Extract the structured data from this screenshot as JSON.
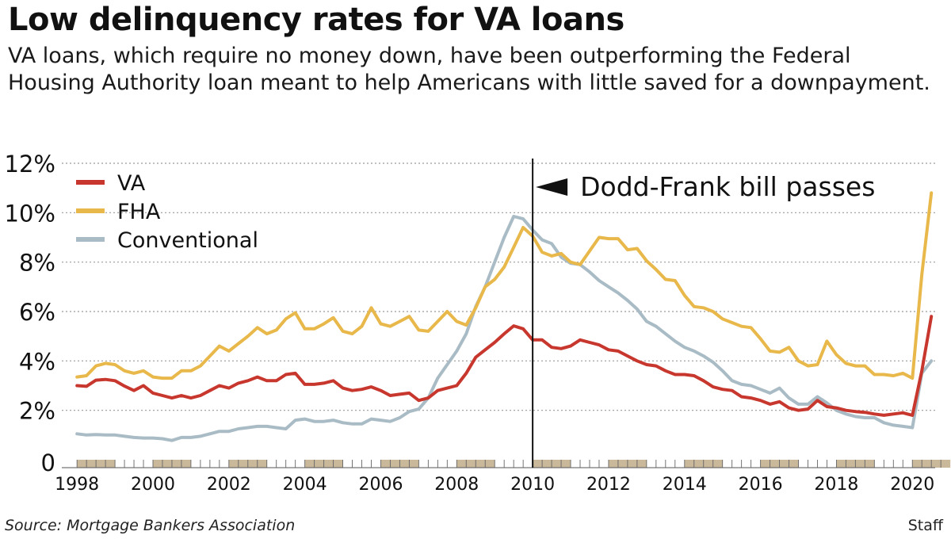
{
  "header": {
    "title": "Low delinquency rates for VA loans",
    "subtitle": "VA loans, which require no money down, have been outperforming the Federal Housing Authority loan meant to help Americans with little saved for a downpayment."
  },
  "footer": {
    "source": "Source: Mortgage Bankers Association",
    "credit": "Staff"
  },
  "chart_data": {
    "type": "line",
    "title": "",
    "xlabel": "",
    "ylabel": "",
    "xlim": [
      1997.6,
      2020.6
    ],
    "ylim": [
      0,
      12
    ],
    "grid": true,
    "grid_style": "dotted horizontal",
    "legend_placement": "top-left",
    "y_ticks": [
      {
        "value": 0,
        "label": "0"
      },
      {
        "value": 2,
        "label": "2%"
      },
      {
        "value": 4,
        "label": "4%"
      },
      {
        "value": 6,
        "label": "6%"
      },
      {
        "value": 8,
        "label": "8%"
      },
      {
        "value": 10,
        "label": "10%"
      },
      {
        "value": 12,
        "label": "12%"
      }
    ],
    "x_ticks": [
      {
        "value": 1998,
        "label": "1998"
      },
      {
        "value": 2000,
        "label": "2000"
      },
      {
        "value": 2002,
        "label": "2002"
      },
      {
        "value": 2004,
        "label": "2004"
      },
      {
        "value": 2006,
        "label": "2006"
      },
      {
        "value": 2008,
        "label": "2008"
      },
      {
        "value": 2010,
        "label": "2010"
      },
      {
        "value": 2012,
        "label": "2012"
      },
      {
        "value": 2014,
        "label": "2014"
      },
      {
        "value": 2016,
        "label": "2016"
      },
      {
        "value": 2018,
        "label": "2018"
      },
      {
        "value": 2020,
        "label": "2020"
      }
    ],
    "annotation": {
      "x": 2010.0,
      "label": "Dodd-Frank bill passes"
    },
    "colors": {
      "VA": "#c8372d",
      "FHA": "#e8b84a",
      "Conventional": "#a9bcc6",
      "axis_band": "#c9b89a",
      "grid": "#9a9a9a"
    },
    "series": [
      {
        "name": "VA",
        "points": [
          [
            1998.0,
            3.0
          ],
          [
            1998.25,
            2.97
          ],
          [
            1998.5,
            3.22
          ],
          [
            1998.75,
            3.25
          ],
          [
            1999.0,
            3.2
          ],
          [
            1999.25,
            2.98
          ],
          [
            1999.5,
            2.8
          ],
          [
            1999.75,
            3.0
          ],
          [
            2000.0,
            2.7
          ],
          [
            2000.25,
            2.6
          ],
          [
            2000.5,
            2.5
          ],
          [
            2000.75,
            2.6
          ],
          [
            2001.0,
            2.5
          ],
          [
            2001.25,
            2.6
          ],
          [
            2001.5,
            2.8
          ],
          [
            2001.75,
            3.0
          ],
          [
            2002.0,
            2.9
          ],
          [
            2002.25,
            3.1
          ],
          [
            2002.5,
            3.2
          ],
          [
            2002.75,
            3.35
          ],
          [
            2003.0,
            3.2
          ],
          [
            2003.25,
            3.2
          ],
          [
            2003.5,
            3.45
          ],
          [
            2003.75,
            3.5
          ],
          [
            2004.0,
            3.05
          ],
          [
            2004.25,
            3.05
          ],
          [
            2004.5,
            3.1
          ],
          [
            2004.75,
            3.2
          ],
          [
            2005.0,
            2.9
          ],
          [
            2005.25,
            2.8
          ],
          [
            2005.5,
            2.85
          ],
          [
            2005.75,
            2.95
          ],
          [
            2006.0,
            2.8
          ],
          [
            2006.25,
            2.6
          ],
          [
            2006.5,
            2.65
          ],
          [
            2006.75,
            2.7
          ],
          [
            2007.0,
            2.4
          ],
          [
            2007.25,
            2.5
          ],
          [
            2007.5,
            2.8
          ],
          [
            2007.75,
            2.9
          ],
          [
            2008.0,
            3.0
          ],
          [
            2008.25,
            3.5
          ],
          [
            2008.5,
            4.15
          ],
          [
            2008.75,
            4.45
          ],
          [
            2009.0,
            4.75
          ],
          [
            2009.25,
            5.1
          ],
          [
            2009.5,
            5.42
          ],
          [
            2009.75,
            5.3
          ],
          [
            2010.0,
            4.85
          ],
          [
            2010.25,
            4.85
          ],
          [
            2010.5,
            4.55
          ],
          [
            2010.75,
            4.5
          ],
          [
            2011.0,
            4.6
          ],
          [
            2011.25,
            4.85
          ],
          [
            2011.5,
            4.75
          ],
          [
            2011.75,
            4.65
          ],
          [
            2012.0,
            4.45
          ],
          [
            2012.25,
            4.4
          ],
          [
            2012.5,
            4.2
          ],
          [
            2012.75,
            4.0
          ],
          [
            2013.0,
            3.85
          ],
          [
            2013.25,
            3.8
          ],
          [
            2013.5,
            3.6
          ],
          [
            2013.75,
            3.45
          ],
          [
            2014.0,
            3.45
          ],
          [
            2014.25,
            3.4
          ],
          [
            2014.5,
            3.2
          ],
          [
            2014.75,
            2.95
          ],
          [
            2015.0,
            2.85
          ],
          [
            2015.25,
            2.8
          ],
          [
            2015.5,
            2.55
          ],
          [
            2015.75,
            2.5
          ],
          [
            2016.0,
            2.4
          ],
          [
            2016.25,
            2.25
          ],
          [
            2016.5,
            2.35
          ],
          [
            2016.75,
            2.1
          ],
          [
            2017.0,
            2.0
          ],
          [
            2017.25,
            2.05
          ],
          [
            2017.5,
            2.4
          ],
          [
            2017.75,
            2.15
          ],
          [
            2018.0,
            2.1
          ],
          [
            2018.25,
            2.0
          ],
          [
            2018.5,
            1.95
          ],
          [
            2018.75,
            1.92
          ],
          [
            2019.0,
            1.85
          ],
          [
            2019.25,
            1.8
          ],
          [
            2019.5,
            1.85
          ],
          [
            2019.75,
            1.9
          ],
          [
            2020.0,
            1.8
          ],
          [
            2020.25,
            3.6
          ],
          [
            2020.5,
            5.8
          ]
        ]
      },
      {
        "name": "FHA",
        "points": [
          [
            1998.0,
            3.35
          ],
          [
            1998.25,
            3.4
          ],
          [
            1998.5,
            3.8
          ],
          [
            1998.75,
            3.9
          ],
          [
            1999.0,
            3.85
          ],
          [
            1999.25,
            3.6
          ],
          [
            1999.5,
            3.5
          ],
          [
            1999.75,
            3.6
          ],
          [
            2000.0,
            3.35
          ],
          [
            2000.25,
            3.3
          ],
          [
            2000.5,
            3.3
          ],
          [
            2000.75,
            3.6
          ],
          [
            2001.0,
            3.6
          ],
          [
            2001.25,
            3.8
          ],
          [
            2001.5,
            4.2
          ],
          [
            2001.75,
            4.6
          ],
          [
            2002.0,
            4.4
          ],
          [
            2002.25,
            4.7
          ],
          [
            2002.5,
            5.0
          ],
          [
            2002.75,
            5.35
          ],
          [
            2003.0,
            5.1
          ],
          [
            2003.25,
            5.25
          ],
          [
            2003.5,
            5.7
          ],
          [
            2003.75,
            5.95
          ],
          [
            2004.0,
            5.3
          ],
          [
            2004.25,
            5.3
          ],
          [
            2004.5,
            5.5
          ],
          [
            2004.75,
            5.75
          ],
          [
            2005.0,
            5.2
          ],
          [
            2005.25,
            5.1
          ],
          [
            2005.5,
            5.4
          ],
          [
            2005.75,
            6.15
          ],
          [
            2006.0,
            5.5
          ],
          [
            2006.25,
            5.4
          ],
          [
            2006.5,
            5.6
          ],
          [
            2006.75,
            5.8
          ],
          [
            2007.0,
            5.25
          ],
          [
            2007.25,
            5.2
          ],
          [
            2007.5,
            5.6
          ],
          [
            2007.75,
            6.0
          ],
          [
            2008.0,
            5.6
          ],
          [
            2008.25,
            5.45
          ],
          [
            2008.5,
            6.15
          ],
          [
            2008.75,
            7.0
          ],
          [
            2009.0,
            7.3
          ],
          [
            2009.25,
            7.8
          ],
          [
            2009.5,
            8.6
          ],
          [
            2009.75,
            9.4
          ],
          [
            2010.0,
            9.05
          ],
          [
            2010.25,
            8.4
          ],
          [
            2010.5,
            8.25
          ],
          [
            2010.75,
            8.35
          ],
          [
            2011.0,
            8.0
          ],
          [
            2011.25,
            7.9
          ],
          [
            2011.5,
            8.45
          ],
          [
            2011.75,
            9.0
          ],
          [
            2012.0,
            8.95
          ],
          [
            2012.25,
            8.95
          ],
          [
            2012.5,
            8.5
          ],
          [
            2012.75,
            8.55
          ],
          [
            2013.0,
            8.05
          ],
          [
            2013.25,
            7.7
          ],
          [
            2013.5,
            7.3
          ],
          [
            2013.75,
            7.25
          ],
          [
            2014.0,
            6.65
          ],
          [
            2014.25,
            6.2
          ],
          [
            2014.5,
            6.15
          ],
          [
            2014.75,
            6.0
          ],
          [
            2015.0,
            5.7
          ],
          [
            2015.25,
            5.55
          ],
          [
            2015.5,
            5.4
          ],
          [
            2015.75,
            5.35
          ],
          [
            2016.0,
            4.9
          ],
          [
            2016.25,
            4.4
          ],
          [
            2016.5,
            4.35
          ],
          [
            2016.75,
            4.55
          ],
          [
            2017.0,
            4.0
          ],
          [
            2017.25,
            3.8
          ],
          [
            2017.5,
            3.85
          ],
          [
            2017.75,
            4.8
          ],
          [
            2018.0,
            4.25
          ],
          [
            2018.25,
            3.9
          ],
          [
            2018.5,
            3.8
          ],
          [
            2018.75,
            3.8
          ],
          [
            2019.0,
            3.45
          ],
          [
            2019.25,
            3.45
          ],
          [
            2019.5,
            3.4
          ],
          [
            2019.75,
            3.5
          ],
          [
            2020.0,
            3.3
          ],
          [
            2020.25,
            7.5
          ],
          [
            2020.5,
            10.8
          ]
        ]
      },
      {
        "name": "Conventional",
        "points": [
          [
            1998.0,
            1.05
          ],
          [
            1998.25,
            1.0
          ],
          [
            1998.5,
            1.02
          ],
          [
            1998.75,
            1.0
          ],
          [
            1999.0,
            1.0
          ],
          [
            1999.25,
            0.95
          ],
          [
            1999.5,
            0.9
          ],
          [
            1999.75,
            0.88
          ],
          [
            2000.0,
            0.88
          ],
          [
            2000.25,
            0.85
          ],
          [
            2000.5,
            0.78
          ],
          [
            2000.75,
            0.9
          ],
          [
            2001.0,
            0.9
          ],
          [
            2001.25,
            0.95
          ],
          [
            2001.5,
            1.05
          ],
          [
            2001.75,
            1.15
          ],
          [
            2002.0,
            1.15
          ],
          [
            2002.25,
            1.25
          ],
          [
            2002.5,
            1.3
          ],
          [
            2002.75,
            1.35
          ],
          [
            2003.0,
            1.35
          ],
          [
            2003.25,
            1.3
          ],
          [
            2003.5,
            1.25
          ],
          [
            2003.75,
            1.6
          ],
          [
            2004.0,
            1.65
          ],
          [
            2004.25,
            1.55
          ],
          [
            2004.5,
            1.55
          ],
          [
            2004.75,
            1.6
          ],
          [
            2005.0,
            1.5
          ],
          [
            2005.25,
            1.45
          ],
          [
            2005.5,
            1.45
          ],
          [
            2005.75,
            1.65
          ],
          [
            2006.0,
            1.6
          ],
          [
            2006.25,
            1.55
          ],
          [
            2006.5,
            1.7
          ],
          [
            2006.75,
            1.95
          ],
          [
            2007.0,
            2.05
          ],
          [
            2007.25,
            2.5
          ],
          [
            2007.5,
            3.3
          ],
          [
            2007.75,
            3.85
          ],
          [
            2008.0,
            4.4
          ],
          [
            2008.25,
            5.1
          ],
          [
            2008.5,
            6.2
          ],
          [
            2008.75,
            7.0
          ],
          [
            2009.0,
            8.0
          ],
          [
            2009.25,
            9.0
          ],
          [
            2009.5,
            9.85
          ],
          [
            2009.75,
            9.75
          ],
          [
            2010.0,
            9.3
          ],
          [
            2010.25,
            8.9
          ],
          [
            2010.5,
            8.75
          ],
          [
            2010.75,
            8.2
          ],
          [
            2011.0,
            7.95
          ],
          [
            2011.25,
            7.9
          ],
          [
            2011.5,
            7.6
          ],
          [
            2011.75,
            7.25
          ],
          [
            2012.0,
            7.0
          ],
          [
            2012.25,
            6.75
          ],
          [
            2012.5,
            6.45
          ],
          [
            2012.75,
            6.1
          ],
          [
            2013.0,
            5.6
          ],
          [
            2013.25,
            5.4
          ],
          [
            2013.5,
            5.1
          ],
          [
            2013.75,
            4.8
          ],
          [
            2014.0,
            4.55
          ],
          [
            2014.25,
            4.4
          ],
          [
            2014.5,
            4.2
          ],
          [
            2014.75,
            3.95
          ],
          [
            2015.0,
            3.6
          ],
          [
            2015.25,
            3.2
          ],
          [
            2015.5,
            3.05
          ],
          [
            2015.75,
            3.0
          ],
          [
            2016.0,
            2.85
          ],
          [
            2016.25,
            2.7
          ],
          [
            2016.5,
            2.9
          ],
          [
            2016.75,
            2.5
          ],
          [
            2017.0,
            2.25
          ],
          [
            2017.25,
            2.25
          ],
          [
            2017.5,
            2.55
          ],
          [
            2017.75,
            2.3
          ],
          [
            2018.0,
            2.0
          ],
          [
            2018.25,
            1.85
          ],
          [
            2018.5,
            1.75
          ],
          [
            2018.75,
            1.7
          ],
          [
            2019.0,
            1.7
          ],
          [
            2019.25,
            1.5
          ],
          [
            2019.5,
            1.4
          ],
          [
            2019.75,
            1.35
          ],
          [
            2020.0,
            1.3
          ],
          [
            2020.25,
            3.5
          ],
          [
            2020.5,
            4.0
          ]
        ]
      }
    ]
  }
}
